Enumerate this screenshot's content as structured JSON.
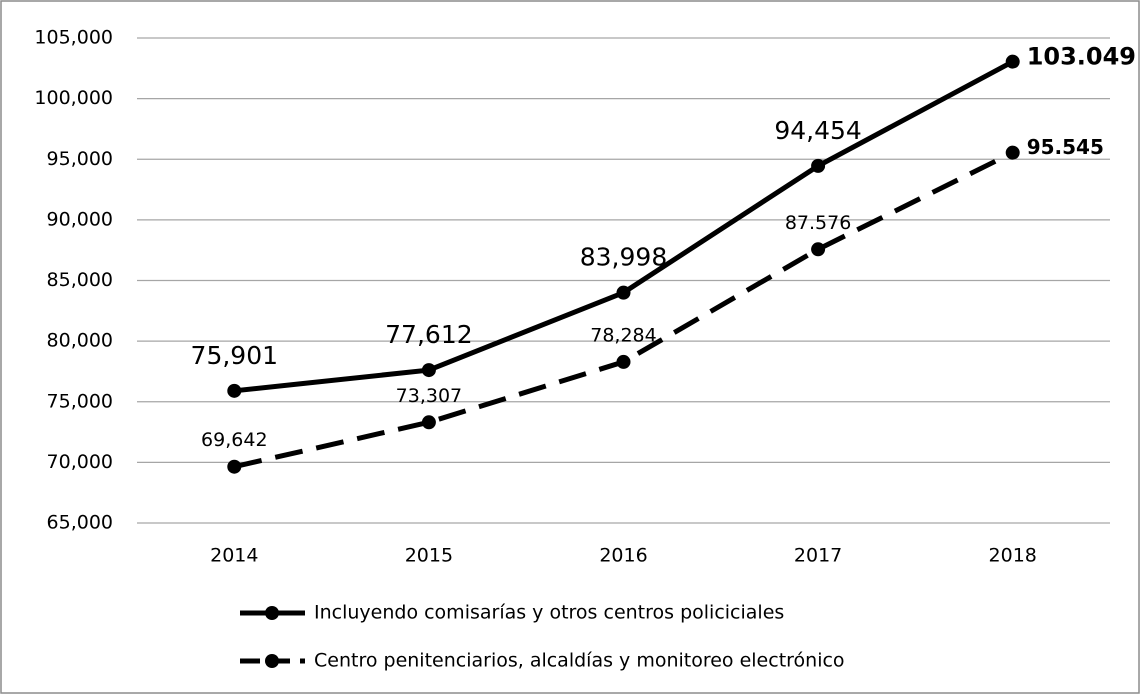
{
  "chart_data": {
    "type": "line",
    "categories": [
      "2014",
      "2015",
      "2016",
      "2017",
      "2018"
    ],
    "series": [
      {
        "name": "Incluyendo comisarías y otros centros policiciales",
        "color": "#000000",
        "line_style": "solid",
        "values": [
          75901,
          77612,
          83998,
          94454,
          103049
        ],
        "value_labels": [
          "75,901",
          "77,612",
          "83,998",
          "94,454",
          "103.049"
        ]
      },
      {
        "name": "Centro penitenciarios, alcaldías y monitoreo electrónico",
        "color": "#000000",
        "line_style": "dashed",
        "values": [
          69642,
          73307,
          78284,
          87576,
          95545
        ],
        "value_labels": [
          "69,642",
          "73,307",
          "78,284",
          "87.576",
          "95.545"
        ]
      }
    ],
    "ylim": [
      65000,
      105000
    ],
    "yticks": [
      {
        "value": 65000,
        "label": "65,000"
      },
      {
        "value": 70000,
        "label": "70,000"
      },
      {
        "value": 75000,
        "label": "75,000"
      },
      {
        "value": 80000,
        "label": "80,000"
      },
      {
        "value": 85000,
        "label": "85,000"
      },
      {
        "value": 90000,
        "label": "90,000"
      },
      {
        "value": 95000,
        "label": "95,000"
      },
      {
        "value": 100000,
        "label": "100,000"
      },
      {
        "value": 105000,
        "label": "105,000"
      }
    ],
    "grid": true,
    "legend": "bottom"
  }
}
